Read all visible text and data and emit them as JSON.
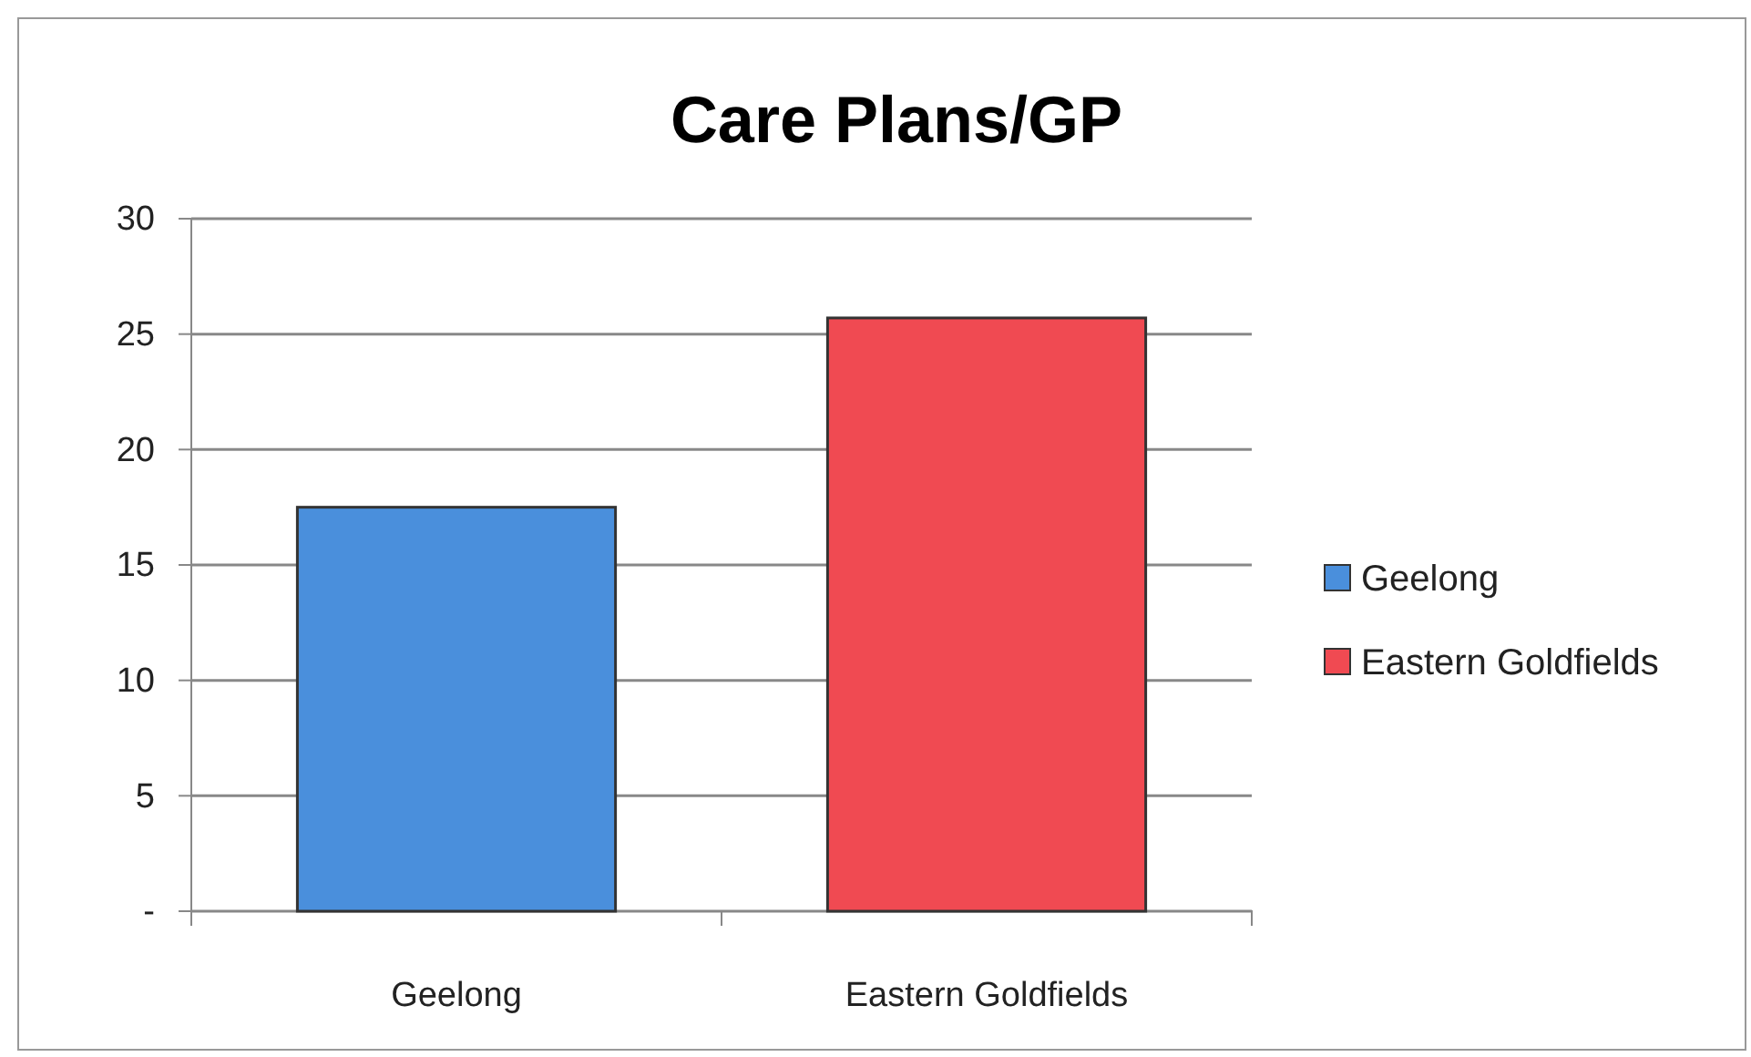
{
  "chart_data": {
    "type": "bar",
    "title": "Care Plans/GP",
    "categories": [
      "Geelong",
      "Eastern Goldfields"
    ],
    "series": [
      {
        "name": "Geelong",
        "color": "#4a8fdc",
        "values": [
          17.5,
          null
        ]
      },
      {
        "name": "Eastern Goldfields",
        "color": "#f04a52",
        "values": [
          null,
          25.7
        ]
      }
    ],
    "ylim": [
      0,
      30
    ],
    "yticks": [
      {
        "value": 0,
        "label": "-"
      },
      5,
      10,
      15,
      20,
      25,
      30
    ],
    "grid": "y",
    "legend": "right"
  }
}
